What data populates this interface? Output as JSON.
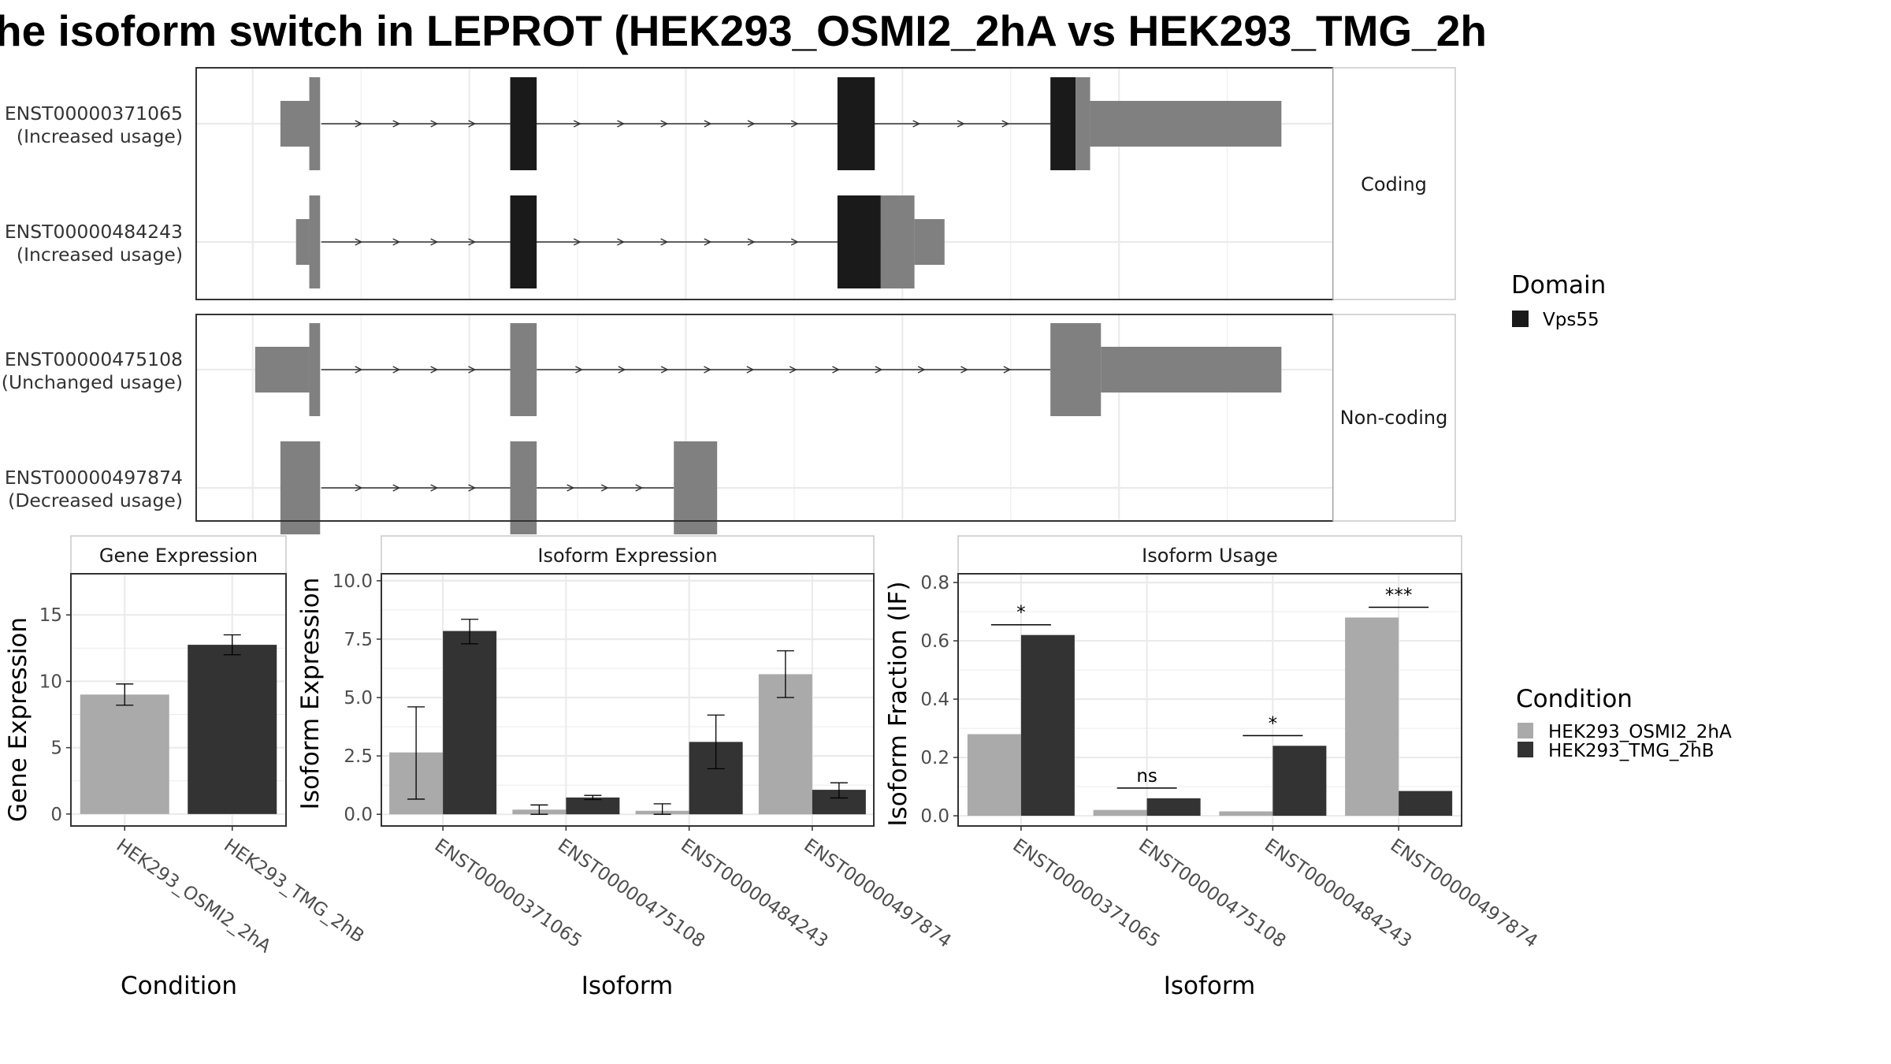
{
  "title": "he isoform switch in LEPROT (HEK293_OSMI2_2hA vs HEK293_TMG_2h",
  "colors": {
    "domain": "#1a1a1a",
    "exon": "#808080",
    "osmi": "#aaaaaa",
    "tmg": "#333333",
    "grid": "#ebebeb",
    "panel_border": "#333333"
  },
  "transcript_panels": [
    {
      "strip": "Coding",
      "transcripts": [
        {
          "id": "ENST00000371065",
          "usage": "(Increased usage)",
          "introns": [
            [
              57,
              214
            ],
            [
              234,
              487
            ],
            [
              515,
              663
            ]
          ],
          "exons": [
            {
              "start": 23,
              "end": 51,
              "kind": "utr"
            },
            {
              "start": 47,
              "end": 56,
              "kind": "cds"
            },
            {
              "start": 214,
              "end": 236,
              "kind": "domain"
            },
            {
              "start": 486,
              "end": 517,
              "kind": "domain"
            },
            {
              "start": 663,
              "end": 684,
              "kind": "domain"
            },
            {
              "start": 684,
              "end": 696,
              "kind": "cds"
            },
            {
              "start": 696,
              "end": 855,
              "kind": "utr"
            }
          ]
        },
        {
          "id": "ENST00000484243",
          "usage": "(Increased usage)",
          "introns": [
            [
              57,
              214
            ],
            [
              234,
              487
            ]
          ],
          "exons": [
            {
              "start": 36,
              "end": 47,
              "kind": "utr"
            },
            {
              "start": 47,
              "end": 56,
              "kind": "cds"
            },
            {
              "start": 214,
              "end": 236,
              "kind": "domain"
            },
            {
              "start": 486,
              "end": 522,
              "kind": "domain"
            },
            {
              "start": 522,
              "end": 550,
              "kind": "cds"
            },
            {
              "start": 550,
              "end": 575,
              "kind": "utr"
            }
          ]
        }
      ]
    },
    {
      "strip": "Non-coding",
      "transcripts": [
        {
          "id": "ENST00000475108",
          "usage": "(Unchanged usage)",
          "introns": [
            [
              57,
              214
            ],
            [
              236,
              663
            ]
          ],
          "exons": [
            {
              "start": 2,
              "end": 47,
              "kind": "utr"
            },
            {
              "start": 47,
              "end": 56,
              "kind": "cds"
            },
            {
              "start": 214,
              "end": 236,
              "kind": "cds"
            },
            {
              "start": 663,
              "end": 705,
              "kind": "cds"
            },
            {
              "start": 705,
              "end": 855,
              "kind": "utr"
            }
          ]
        },
        {
          "id": "ENST00000497874",
          "usage": "(Decreased usage)",
          "introns": [
            [
              57,
              214
            ],
            [
              236,
              350
            ]
          ],
          "exons": [
            {
              "start": 23,
              "end": 56,
              "kind": "cds"
            },
            {
              "start": 214,
              "end": 236,
              "kind": "cds"
            },
            {
              "start": 350,
              "end": 386,
              "kind": "cds"
            }
          ]
        }
      ]
    }
  ],
  "legend_domain": {
    "title": "Domain",
    "items": [
      "Vps55"
    ]
  },
  "legend_condition": {
    "title": "Condition",
    "items": [
      "HEK293_OSMI2_2hA",
      "HEK293_TMG_2hB"
    ]
  },
  "chart_data": [
    {
      "type": "bar",
      "title": "Gene Expression",
      "xlabel": "Condition",
      "ylabel": "Gene Expression",
      "categories": [
        "HEK293_OSMI2_2hA",
        "HEK293_TMG_2hB"
      ],
      "values": [
        9.0,
        12.75
      ],
      "error": [
        [
          8.2,
          9.8
        ],
        [
          12.0,
          13.5
        ]
      ],
      "ylim": [
        -0.9,
        18.1
      ],
      "yticks": [
        0,
        5,
        10,
        15
      ],
      "ytick_labels": [
        "0",
        "5",
        "10",
        "15"
      ]
    },
    {
      "type": "bar",
      "title": "Isoform Expression",
      "xlabel": "Isoform",
      "ylabel": "Isoform Expression",
      "categories": [
        "ENST00000371065",
        "ENST00000475108",
        "ENST00000484243",
        "ENST00000497874"
      ],
      "series": [
        {
          "name": "HEK293_OSMI2_2hA",
          "values": [
            2.65,
            0.2,
            0.15,
            6.0
          ],
          "error": [
            [
              0.65,
              4.6
            ],
            [
              0.0,
              0.4
            ],
            [
              0.0,
              0.45
            ],
            [
              5.0,
              7.0
            ]
          ]
        },
        {
          "name": "HEK293_TMG_2hB",
          "values": [
            7.85,
            0.72,
            3.1,
            1.05
          ],
          "error": [
            [
              7.3,
              8.35
            ],
            [
              0.63,
              0.81
            ],
            [
              1.95,
              4.25
            ],
            [
              0.7,
              1.35
            ]
          ]
        }
      ],
      "ylim": [
        -0.5,
        10.3
      ],
      "yticks": [
        0,
        2.5,
        5,
        7.5,
        10
      ],
      "ytick_labels": [
        "0.0",
        "2.5",
        "5.0",
        "7.5",
        "10.0"
      ]
    },
    {
      "type": "bar",
      "title": "Isoform Usage",
      "xlabel": "Isoform",
      "ylabel": "Isoform Fraction (IF)",
      "categories": [
        "ENST00000371065",
        "ENST00000475108",
        "ENST00000484243",
        "ENST00000497874"
      ],
      "series": [
        {
          "name": "HEK293_OSMI2_2hA",
          "values": [
            0.28,
            0.02,
            0.015,
            0.68
          ]
        },
        {
          "name": "HEK293_TMG_2hB",
          "values": [
            0.62,
            0.06,
            0.24,
            0.085
          ]
        }
      ],
      "significance": [
        {
          "label": "*",
          "y": 0.655
        },
        {
          "label": "ns",
          "y": 0.095
        },
        {
          "label": "*",
          "y": 0.275
        },
        {
          "label": "***",
          "y": 0.715
        }
      ],
      "ylim": [
        -0.035,
        0.83
      ],
      "yticks": [
        0,
        0.2,
        0.4,
        0.6,
        0.8
      ],
      "ytick_labels": [
        "0.0",
        "0.2",
        "0.4",
        "0.6",
        "0.8"
      ]
    }
  ]
}
